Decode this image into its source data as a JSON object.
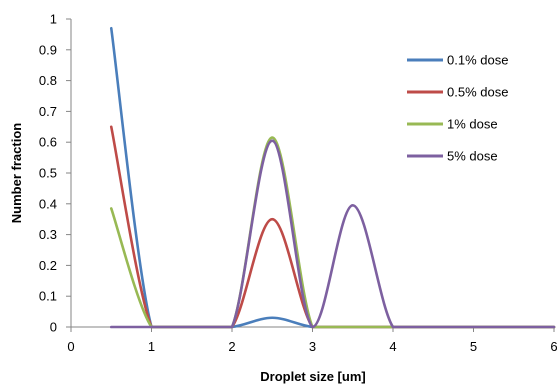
{
  "chart_data": {
    "type": "line",
    "title": "",
    "xlabel": "Droplet size [um]",
    "ylabel": "Number fraction",
    "xlim": [
      0,
      6
    ],
    "ylim": [
      0,
      1
    ],
    "x_ticks": [
      "0",
      "1",
      "2",
      "3",
      "4",
      "5",
      "6"
    ],
    "y_ticks": [
      "0",
      "0.1",
      "0.2",
      "0.3",
      "0.4",
      "0.5",
      "0.6",
      "0.7",
      "0.8",
      "0.9",
      "1"
    ],
    "grid": false,
    "legend": "right",
    "series": [
      {
        "name": "0.1% dose",
        "color": "#4a7ebb",
        "x": [
          0.5,
          1,
          1.5,
          2,
          2.5,
          3,
          3.5,
          4,
          4.5,
          5,
          5.5,
          6
        ],
        "y": [
          0.97,
          0,
          0,
          0,
          0.03,
          0,
          0,
          0,
          0,
          0,
          0,
          0
        ]
      },
      {
        "name": "0.5% dose",
        "color": "#be4b48",
        "x": [
          0.5,
          1,
          1.5,
          2,
          2.5,
          3,
          3.5,
          4,
          4.5,
          5,
          5.5,
          6
        ],
        "y": [
          0.65,
          0,
          0,
          0,
          0.35,
          0,
          0,
          0,
          0,
          0,
          0,
          0
        ]
      },
      {
        "name": "1% dose",
        "color": "#98b954",
        "x": [
          0.5,
          1,
          1.5,
          2,
          2.5,
          3,
          3.5,
          4,
          4.5,
          5,
          5.5,
          6
        ],
        "y": [
          0.385,
          0,
          0,
          0,
          0.615,
          0,
          0,
          0,
          0,
          0,
          0,
          0
        ]
      },
      {
        "name": "5% dose",
        "color": "#7d60a0",
        "x": [
          0.5,
          1,
          1.5,
          2,
          2.5,
          3,
          3.5,
          4,
          4.5,
          5,
          5.5,
          6
        ],
        "y": [
          0,
          0,
          0,
          0,
          0.605,
          0,
          0.395,
          0,
          0,
          0,
          0,
          0
        ]
      }
    ]
  }
}
